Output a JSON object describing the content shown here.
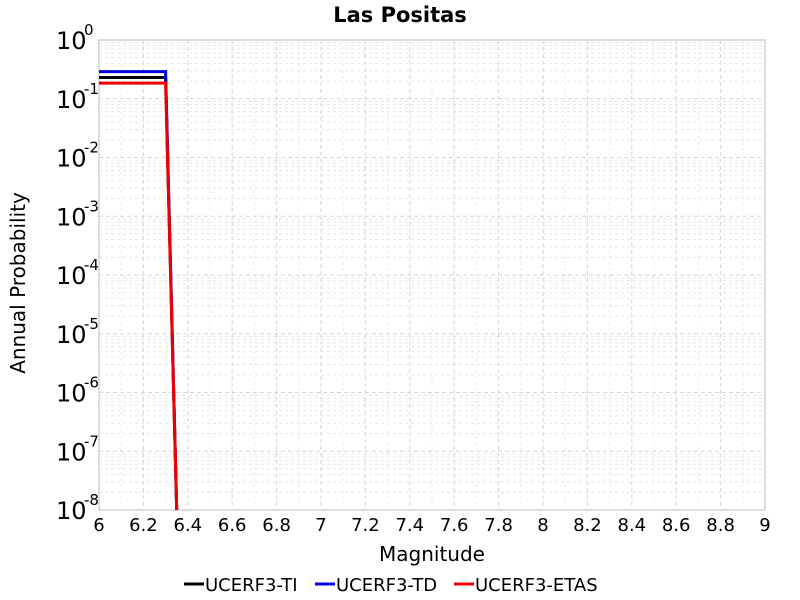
{
  "chart_data": {
    "type": "line",
    "title": "Las Positas",
    "xlabel": "Magnitude",
    "ylabel": "Annual Probability",
    "xlim": [
      6,
      9
    ],
    "ylim": [
      1e-08,
      1
    ],
    "yscale": "log",
    "grid": true,
    "legend_position": "bottom",
    "x_ticks": [
      "6",
      "6.2",
      "6.4",
      "6.6",
      "6.8",
      "7",
      "7.2",
      "7.4",
      "7.6",
      "7.8",
      "8",
      "8.2",
      "8.4",
      "8.6",
      "8.8",
      "9"
    ],
    "y_ticks": [
      {
        "base": "10",
        "exp": "0"
      },
      {
        "base": "10",
        "exp": "-1"
      },
      {
        "base": "10",
        "exp": "-2"
      },
      {
        "base": "10",
        "exp": "-3"
      },
      {
        "base": "10",
        "exp": "-4"
      },
      {
        "base": "10",
        "exp": "-5"
      },
      {
        "base": "10",
        "exp": "-6"
      },
      {
        "base": "10",
        "exp": "-7"
      },
      {
        "base": "10",
        "exp": "-8"
      }
    ],
    "series": [
      {
        "name": "UCERF3-TI",
        "color": "#000000",
        "x": [
          6.0,
          6.3,
          6.35
        ],
        "y": [
          0.23,
          0.23,
          1e-08
        ]
      },
      {
        "name": "UCERF3-TD",
        "color": "#0000dd",
        "x": [
          6.0,
          6.3,
          6.35
        ],
        "y": [
          0.29,
          0.29,
          1e-08
        ]
      },
      {
        "name": "UCERF3-ETAS",
        "color": "#ee0000",
        "x": [
          6.0,
          6.3,
          6.35
        ],
        "y": [
          0.185,
          0.185,
          1e-08
        ]
      }
    ]
  }
}
